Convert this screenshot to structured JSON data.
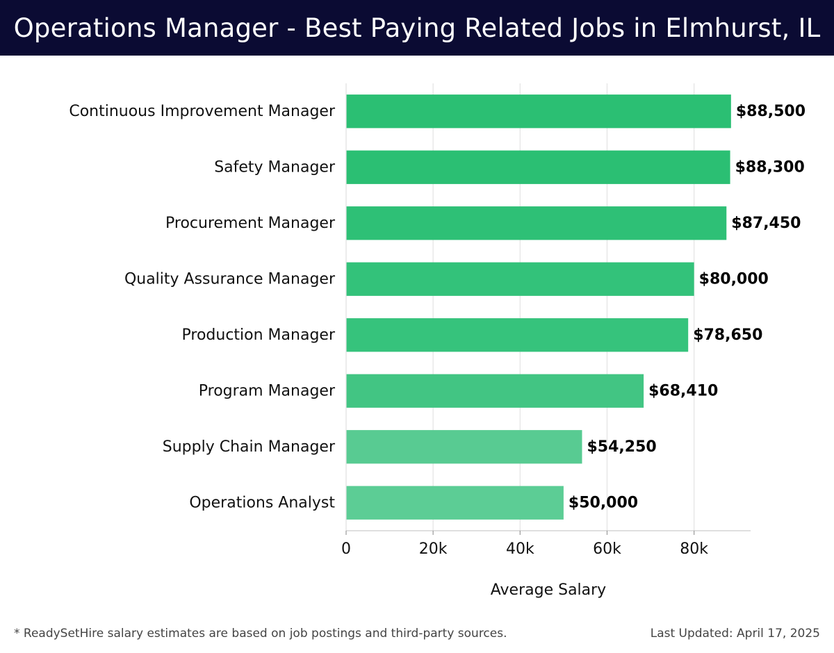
{
  "header": {
    "title": "Operations Manager - Best Paying Related Jobs in Elmhurst, IL",
    "background": "#0b0b33"
  },
  "footer": {
    "footnote": "* ReadySetHire salary estimates are based on job postings and third-party sources.",
    "updated": "Last Updated: April 17, 2025"
  },
  "chart_data": {
    "type": "bar",
    "orientation": "horizontal",
    "title": "Operations Manager - Best Paying Related Jobs in Elmhurst, IL",
    "xlabel": "Average Salary",
    "ylabel": "",
    "xlim": [
      0,
      93000
    ],
    "xticks": [
      0,
      20000,
      40000,
      60000,
      80000
    ],
    "xtick_labels": [
      "0",
      "20k",
      "40k",
      "60k",
      "80k"
    ],
    "grid": true,
    "categories": [
      "Continuous Improvement Manager",
      "Safety Manager",
      "Procurement Manager",
      "Quality Assurance Manager",
      "Production Manager",
      "Program Manager",
      "Supply Chain Manager",
      "Operations Analyst"
    ],
    "values": [
      88500,
      88300,
      87450,
      80000,
      78650,
      68410,
      54250,
      50000
    ],
    "value_labels": [
      "$88,500",
      "$88,300",
      "$87,450",
      "$80,000",
      "$78,650",
      "$68,410",
      "$54,250",
      "$50,000"
    ],
    "bar_colors": [
      "#2bbf73",
      "#2bbf73",
      "#2ec076",
      "#33c27a",
      "#36c37c",
      "#42c583",
      "#58cb92",
      "#5ccd95"
    ]
  }
}
